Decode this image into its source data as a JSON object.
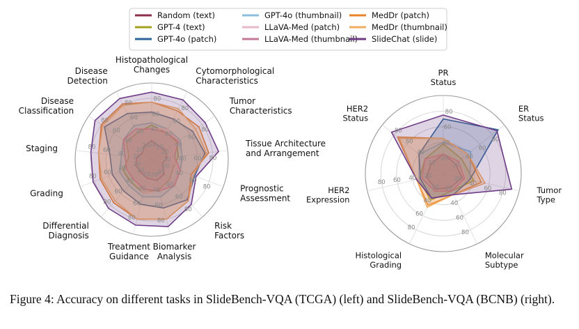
{
  "figure": {
    "caption": "Figure 4:  Accuracy on different tasks in SlideBench-VQA (TCGA) (left) and SlideBench-VQA (BCNB) (right)."
  },
  "legend": [
    {
      "name": "Random (text)",
      "color": "#8e2f4a"
    },
    {
      "name": "GPT-4o (thumbnail)",
      "color": "#8dbfdc"
    },
    {
      "name": "MedDr (patch)",
      "color": "#e8832a"
    },
    {
      "name": "GPT-4 (text)",
      "color": "#a3a01c"
    },
    {
      "name": "LLaVA-Med (patch)",
      "color": "#e6b8c8"
    },
    {
      "name": "MedDr (thumbnail)",
      "color": "#f2ad62"
    },
    {
      "name": "GPT-4o (patch)",
      "color": "#2d6398"
    },
    {
      "name": "LLaVA-Med (thumbnail)",
      "color": "#c27896"
    },
    {
      "name": "SlideChat (slide)",
      "color": "#6e3c86"
    }
  ],
  "chart_data": [
    {
      "type": "radar",
      "axes": [
        "Histopathological\nChanges",
        "Cytomorphological\nCharacteristics",
        "Tumor\nCharacteristics",
        "Tissue Architecture\nand Arrangement",
        "Prognostic\nAssessment",
        "Risk\nFactors",
        "Biomarker\nAnalysis",
        "Treatment\nGuidance",
        "Differential\nDiagnosis",
        "Grading",
        "Staging",
        "Disease\nClassification",
        "Disease\nDetection"
      ],
      "rlim": [
        0,
        100
      ],
      "rticks": [
        20,
        40,
        60,
        80
      ],
      "series": [
        {
          "name": "Random (text)",
          "values": [
            25,
            20,
            22,
            20,
            15,
            25,
            28,
            25,
            22,
            22,
            20,
            15,
            20
          ]
        },
        {
          "name": "GPT-4 (text)",
          "values": [
            45,
            40,
            40,
            35,
            30,
            35,
            40,
            45,
            40,
            40,
            30,
            40,
            40
          ]
        },
        {
          "name": "GPT-4o (thumbnail)",
          "values": [
            48,
            45,
            45,
            40,
            40,
            45,
            50,
            50,
            45,
            45,
            40,
            45,
            50
          ]
        },
        {
          "name": "GPT-4o (patch)",
          "values": [
            62,
            60,
            65,
            70,
            60,
            70,
            65,
            60,
            55,
            55,
            55,
            75,
            68
          ]
        },
        {
          "name": "LLaVA-Med (patch)",
          "values": [
            40,
            45,
            42,
            25,
            40,
            45,
            42,
            45,
            35,
            35,
            35,
            45,
            45
          ]
        },
        {
          "name": "LLaVA-Med (thumbnail)",
          "values": [
            40,
            40,
            42,
            30,
            40,
            45,
            42,
            40,
            35,
            35,
            35,
            45,
            45
          ]
        },
        {
          "name": "MedDr (patch)",
          "values": [
            75,
            72,
            75,
            75,
            55,
            72,
            80,
            80,
            75,
            72,
            70,
            80,
            82
          ]
        },
        {
          "name": "MedDr (thumbnail)",
          "values": [
            75,
            75,
            70,
            72,
            58,
            72,
            80,
            80,
            72,
            70,
            70,
            78,
            80
          ]
        },
        {
          "name": "SlideChat (slide)",
          "values": [
            88,
            88,
            85,
            88,
            62,
            78,
            90,
            88,
            85,
            82,
            80,
            90,
            90
          ]
        }
      ]
    },
    {
      "type": "radar",
      "axes": [
        "PR\nStatus",
        "ER\nStatus",
        "Tumor\nType",
        "Molecular\nSubtype",
        "Histological\nGrading",
        "HER2\nExpression",
        "HER2\nStatus"
      ],
      "rlim": [
        0,
        100
      ],
      "rticks": [
        20,
        40,
        60,
        80
      ],
      "series": [
        {
          "name": "Random (text)",
          "values": [
            25,
            20,
            25,
            20,
            22,
            22,
            20
          ]
        },
        {
          "name": "GPT-4 (text)",
          "values": [
            38,
            30,
            40,
            25,
            38,
            32,
            30
          ]
        },
        {
          "name": "GPT-4o (thumbnail)",
          "values": [
            40,
            45,
            35,
            30,
            35,
            32,
            40
          ]
        },
        {
          "name": "GPT-4o (patch)",
          "values": [
            70,
            90,
            35,
            30,
            35,
            30,
            40
          ]
        },
        {
          "name": "LLaVA-Med (patch)",
          "values": [
            25,
            25,
            30,
            25,
            25,
            28,
            30
          ]
        },
        {
          "name": "LLaVA-Med (thumbnail)",
          "values": [
            25,
            25,
            28,
            25,
            25,
            28,
            30
          ]
        },
        {
          "name": "MedDr (patch)",
          "values": [
            45,
            40,
            50,
            30,
            45,
            35,
            75
          ]
        },
        {
          "name": "MedDr (thumbnail)",
          "values": [
            45,
            40,
            55,
            30,
            48,
            35,
            72
          ]
        },
        {
          "name": "SlideChat (slide)",
          "values": [
            75,
            88,
            90,
            30,
            35,
            35,
            85
          ]
        }
      ]
    }
  ],
  "style": {
    "grid_color": "#cccccc",
    "spoke_color": "#dddddd",
    "tick_color": "#888888",
    "label_color": "#111111",
    "fill_opacity": 0.22
  }
}
